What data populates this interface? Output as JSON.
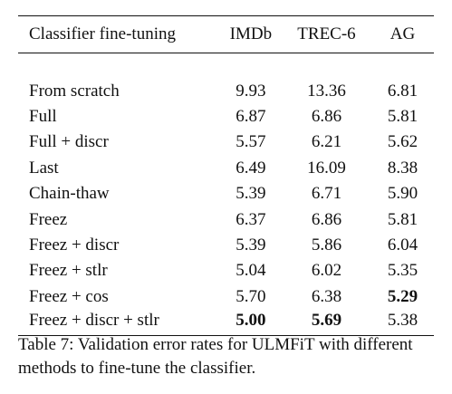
{
  "table": {
    "headers": {
      "method": "Classifier fine-tuning",
      "imdb": "IMDb",
      "trec": "TREC-6",
      "ag": "AG"
    },
    "rows": [
      {
        "method": "From scratch",
        "imdb": "9.93",
        "trec": "13.36",
        "ag": "6.81"
      },
      {
        "method": "Full",
        "imdb": "6.87",
        "trec": "6.86",
        "ag": "5.81"
      },
      {
        "method": "Full + discr",
        "imdb": "5.57",
        "trec": "6.21",
        "ag": "5.62"
      },
      {
        "method": "Last",
        "imdb": "6.49",
        "trec": "16.09",
        "ag": "8.38"
      },
      {
        "method": "Chain-thaw",
        "imdb": "5.39",
        "trec": "6.71",
        "ag": "5.90"
      },
      {
        "method": "Freez",
        "imdb": "6.37",
        "trec": "6.86",
        "ag": "5.81"
      },
      {
        "method": "Freez + discr",
        "imdb": "5.39",
        "trec": "5.86",
        "ag": "6.04"
      },
      {
        "method": "Freez + stlr",
        "imdb": "5.04",
        "trec": "6.02",
        "ag": "5.35"
      },
      {
        "method": "Freez + cos",
        "imdb": "5.70",
        "trec": "6.38",
        "ag": "5.29"
      },
      {
        "method": "Freez + discr + stlr",
        "imdb": "5.00",
        "trec": "5.69",
        "ag": "5.38"
      }
    ],
    "best": {
      "imdb": "Freez + discr + stlr",
      "trec": "Freez + discr + stlr",
      "ag": "Freez + cos"
    }
  },
  "caption": "Table 7: Validation error rates for ULMFiT with different methods to fine-tune the classifier."
}
